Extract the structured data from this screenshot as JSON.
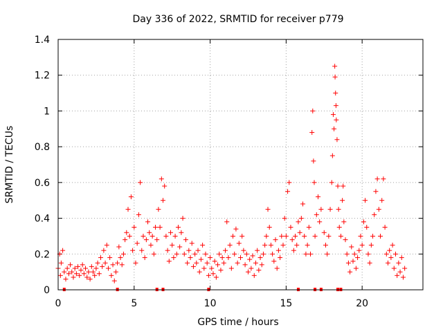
{
  "chart_data": {
    "type": "scatter",
    "title": "Day 336 of 2022, SRMTID for receiver p779",
    "xlabel": "GPS time / hours",
    "ylabel": "SRMTID / TECUs",
    "xlim": [
      0,
      24
    ],
    "ylim": [
      0,
      1.4
    ],
    "xticks": [
      0,
      5,
      10,
      15,
      20
    ],
    "yticks": [
      0,
      0.2,
      0.4,
      0.6,
      0.8,
      1,
      1.2,
      1.4
    ],
    "xtick_labels": [
      "0",
      "5",
      "10",
      "15",
      "20"
    ],
    "ytick_labels": [
      "0",
      "0.2",
      "0.4",
      "0.6",
      "0.8",
      "1",
      "1.2",
      "1.4"
    ],
    "grid": true,
    "marker": "+",
    "color": "#ff0000",
    "series": [
      {
        "name": "SRMTID",
        "points": [
          [
            0.0,
            0.12
          ],
          [
            0.1,
            0.2
          ],
          [
            0.15,
            0.08
          ],
          [
            0.2,
            0.15
          ],
          [
            0.3,
            0.22
          ],
          [
            0.4,
            0.1
          ],
          [
            0.5,
            0.06
          ],
          [
            0.6,
            0.12
          ],
          [
            0.7,
            0.09
          ],
          [
            0.8,
            0.14
          ],
          [
            0.9,
            0.1
          ],
          [
            1.0,
            0.07
          ],
          [
            1.1,
            0.12
          ],
          [
            1.2,
            0.09
          ],
          [
            1.3,
            0.13
          ],
          [
            1.4,
            0.08
          ],
          [
            1.5,
            0.11
          ],
          [
            1.6,
            0.14
          ],
          [
            1.7,
            0.09
          ],
          [
            1.8,
            0.12
          ],
          [
            1.9,
            0.07
          ],
          [
            2.0,
            0.1
          ],
          [
            2.1,
            0.06
          ],
          [
            2.2,
            0.13
          ],
          [
            2.3,
            0.1
          ],
          [
            2.4,
            0.08
          ],
          [
            2.5,
            0.12
          ],
          [
            2.6,
            0.15
          ],
          [
            2.7,
            0.09
          ],
          [
            2.8,
            0.18
          ],
          [
            2.9,
            0.13
          ],
          [
            3.0,
            0.22
          ],
          [
            3.1,
            0.15
          ],
          [
            3.2,
            0.25
          ],
          [
            3.3,
            0.12
          ],
          [
            3.4,
            0.18
          ],
          [
            3.5,
            0.08
          ],
          [
            3.6,
            0.14
          ],
          [
            3.7,
            0.05
          ],
          [
            3.8,
            0.1
          ],
          [
            3.9,
            0.15
          ],
          [
            4.0,
            0.24
          ],
          [
            4.1,
            0.18
          ],
          [
            4.2,
            0.14
          ],
          [
            4.3,
            0.2
          ],
          [
            4.4,
            0.28
          ],
          [
            4.5,
            0.32
          ],
          [
            4.6,
            0.45
          ],
          [
            4.7,
            0.3
          ],
          [
            4.8,
            0.52
          ],
          [
            4.9,
            0.22
          ],
          [
            5.0,
            0.35
          ],
          [
            5.1,
            0.15
          ],
          [
            5.2,
            0.26
          ],
          [
            5.3,
            0.42
          ],
          [
            5.4,
            0.6
          ],
          [
            5.5,
            0.22
          ],
          [
            5.6,
            0.3
          ],
          [
            5.7,
            0.18
          ],
          [
            5.8,
            0.28
          ],
          [
            5.9,
            0.38
          ],
          [
            6.0,
            0.32
          ],
          [
            6.1,
            0.25
          ],
          [
            6.2,
            0.3
          ],
          [
            6.3,
            0.2
          ],
          [
            6.4,
            0.35
          ],
          [
            6.5,
            0.28
          ],
          [
            6.6,
            0.45
          ],
          [
            6.7,
            0.35
          ],
          [
            6.8,
            0.62
          ],
          [
            6.9,
            0.5
          ],
          [
            7.0,
            0.58
          ],
          [
            7.1,
            0.3
          ],
          [
            7.2,
            0.22
          ],
          [
            7.3,
            0.16
          ],
          [
            7.4,
            0.32
          ],
          [
            7.5,
            0.25
          ],
          [
            7.6,
            0.18
          ],
          [
            7.7,
            0.3
          ],
          [
            7.8,
            0.2
          ],
          [
            7.9,
            0.35
          ],
          [
            8.0,
            0.24
          ],
          [
            8.1,
            0.32
          ],
          [
            8.2,
            0.4
          ],
          [
            8.3,
            0.2
          ],
          [
            8.4,
            0.28
          ],
          [
            8.5,
            0.15
          ],
          [
            8.6,
            0.22
          ],
          [
            8.7,
            0.18
          ],
          [
            8.8,
            0.26
          ],
          [
            8.9,
            0.13
          ],
          [
            9.0,
            0.2
          ],
          [
            9.1,
            0.15
          ],
          [
            9.2,
            0.22
          ],
          [
            9.3,
            0.1
          ],
          [
            9.4,
            0.17
          ],
          [
            9.5,
            0.25
          ],
          [
            9.6,
            0.12
          ],
          [
            9.7,
            0.2
          ],
          [
            9.8,
            0.15
          ],
          [
            9.9,
            0.08
          ],
          [
            10.0,
            0.18
          ],
          [
            10.1,
            0.12
          ],
          [
            10.2,
            0.09
          ],
          [
            10.3,
            0.16
          ],
          [
            10.4,
            0.07
          ],
          [
            10.5,
            0.14
          ],
          [
            10.6,
            0.2
          ],
          [
            10.7,
            0.11
          ],
          [
            10.8,
            0.18
          ],
          [
            10.9,
            0.15
          ],
          [
            11.0,
            0.22
          ],
          [
            11.1,
            0.38
          ],
          [
            11.2,
            0.18
          ],
          [
            11.3,
            0.25
          ],
          [
            11.4,
            0.12
          ],
          [
            11.5,
            0.3
          ],
          [
            11.6,
            0.2
          ],
          [
            11.7,
            0.34
          ],
          [
            11.8,
            0.15
          ],
          [
            11.9,
            0.26
          ],
          [
            12.0,
            0.18
          ],
          [
            12.1,
            0.3
          ],
          [
            12.2,
            0.22
          ],
          [
            12.3,
            0.14
          ],
          [
            12.4,
            0.2
          ],
          [
            12.5,
            0.1
          ],
          [
            12.6,
            0.17
          ],
          [
            12.7,
            0.12
          ],
          [
            12.8,
            0.19
          ],
          [
            12.9,
            0.08
          ],
          [
            13.0,
            0.15
          ],
          [
            13.1,
            0.22
          ],
          [
            13.2,
            0.11
          ],
          [
            13.3,
            0.18
          ],
          [
            13.4,
            0.14
          ],
          [
            13.5,
            0.2
          ],
          [
            13.6,
            0.25
          ],
          [
            13.7,
            0.3
          ],
          [
            13.8,
            0.45
          ],
          [
            13.9,
            0.35
          ],
          [
            14.0,
            0.25
          ],
          [
            14.1,
            0.2
          ],
          [
            14.2,
            0.16
          ],
          [
            14.3,
            0.28
          ],
          [
            14.4,
            0.12
          ],
          [
            14.5,
            0.22
          ],
          [
            14.6,
            0.18
          ],
          [
            14.7,
            0.3
          ],
          [
            14.8,
            0.25
          ],
          [
            14.9,
            0.4
          ],
          [
            15.0,
            0.3
          ],
          [
            15.1,
            0.55
          ],
          [
            15.2,
            0.6
          ],
          [
            15.3,
            0.35
          ],
          [
            15.4,
            0.28
          ],
          [
            15.5,
            0.22
          ],
          [
            15.6,
            0.3
          ],
          [
            15.7,
            0.25
          ],
          [
            15.8,
            0.38
          ],
          [
            15.9,
            0.32
          ],
          [
            16.0,
            0.4
          ],
          [
            16.1,
            0.48
          ],
          [
            16.2,
            0.3
          ],
          [
            16.3,
            0.2
          ],
          [
            16.4,
            0.25
          ],
          [
            16.5,
            0.35
          ],
          [
            16.6,
            0.2
          ],
          [
            16.7,
            0.88
          ],
          [
            16.75,
            1.0
          ],
          [
            16.8,
            0.72
          ],
          [
            16.85,
            0.6
          ],
          [
            16.9,
            0.3
          ],
          [
            17.0,
            0.42
          ],
          [
            17.1,
            0.52
          ],
          [
            17.2,
            0.38
          ],
          [
            17.3,
            0.45
          ],
          [
            17.5,
            0.32
          ],
          [
            17.6,
            0.25
          ],
          [
            17.7,
            0.2
          ],
          [
            17.8,
            0.3
          ],
          [
            17.9,
            0.45
          ],
          [
            18.0,
            0.6
          ],
          [
            18.05,
            0.75
          ],
          [
            18.1,
            0.98
          ],
          [
            18.15,
            0.9
          ],
          [
            18.2,
            1.25
          ],
          [
            18.22,
            1.19
          ],
          [
            18.25,
            1.1
          ],
          [
            18.28,
            1.03
          ],
          [
            18.3,
            0.95
          ],
          [
            18.35,
            0.84
          ],
          [
            18.4,
            0.58
          ],
          [
            18.45,
            0.45
          ],
          [
            18.5,
            0.35
          ],
          [
            18.6,
            0.3
          ],
          [
            18.7,
            0.5
          ],
          [
            18.75,
            0.58
          ],
          [
            18.8,
            0.38
          ],
          [
            18.9,
            0.28
          ],
          [
            19.0,
            0.2
          ],
          [
            19.1,
            0.15
          ],
          [
            19.2,
            0.1
          ],
          [
            19.3,
            0.24
          ],
          [
            19.4,
            0.16
          ],
          [
            19.5,
            0.2
          ],
          [
            19.6,
            0.12
          ],
          [
            19.7,
            0.18
          ],
          [
            19.8,
            0.22
          ],
          [
            19.9,
            0.3
          ],
          [
            20.0,
            0.25
          ],
          [
            20.1,
            0.38
          ],
          [
            20.2,
            0.5
          ],
          [
            20.3,
            0.35
          ],
          [
            20.4,
            0.2
          ],
          [
            20.5,
            0.15
          ],
          [
            20.6,
            0.25
          ],
          [
            20.7,
            0.3
          ],
          [
            20.8,
            0.42
          ],
          [
            20.9,
            0.55
          ],
          [
            21.0,
            0.62
          ],
          [
            21.1,
            0.45
          ],
          [
            21.2,
            0.3
          ],
          [
            21.3,
            0.5
          ],
          [
            21.4,
            0.62
          ],
          [
            21.5,
            0.35
          ],
          [
            21.6,
            0.2
          ],
          [
            21.7,
            0.15
          ],
          [
            21.8,
            0.22
          ],
          [
            21.9,
            0.18
          ],
          [
            22.0,
            0.25
          ],
          [
            22.1,
            0.12
          ],
          [
            22.2,
            0.2
          ],
          [
            22.3,
            0.08
          ],
          [
            22.4,
            0.15
          ],
          [
            22.5,
            0.1
          ],
          [
            22.6,
            0.18
          ],
          [
            22.7,
            0.07
          ],
          [
            22.8,
            0.12
          ]
        ]
      }
    ],
    "gap_markers_x": [
      0.4,
      3.9,
      6.5,
      6.9,
      9.9,
      15.8,
      16.9,
      17.3,
      18.4,
      18.6
    ]
  }
}
